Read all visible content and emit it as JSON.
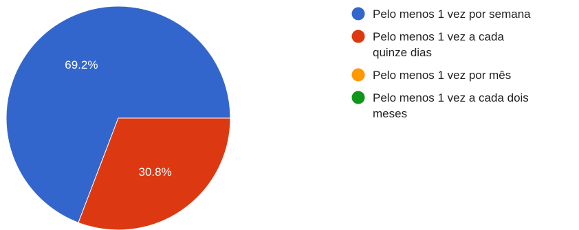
{
  "chart_data": {
    "type": "pie",
    "slices": [
      {
        "label": "Pelo menos 1 vez por semana",
        "value": 69.2,
        "display": "69.2%",
        "color": "#3366cc",
        "legend_lines": [
          "Pelo menos 1 vez por semana"
        ]
      },
      {
        "label": "Pelo menos 1 vez a cada quinze dias",
        "value": 30.8,
        "display": "30.8%",
        "color": "#dc3912",
        "legend_lines": [
          "Pelo menos 1 vez a cada",
          "quinze dias"
        ]
      },
      {
        "label": "Pelo menos 1 vez por mês",
        "value": 0,
        "display": "",
        "color": "#ff9900",
        "legend_lines": [
          "Pelo menos 1 vez por mês"
        ]
      },
      {
        "label": "Pelo menos 1 vez a cada dois meses",
        "value": 0,
        "display": "",
        "color": "#109618",
        "legend_lines": [
          "Pelo menos 1 vez a cada dois",
          "meses"
        ]
      }
    ],
    "legend": "right"
  }
}
